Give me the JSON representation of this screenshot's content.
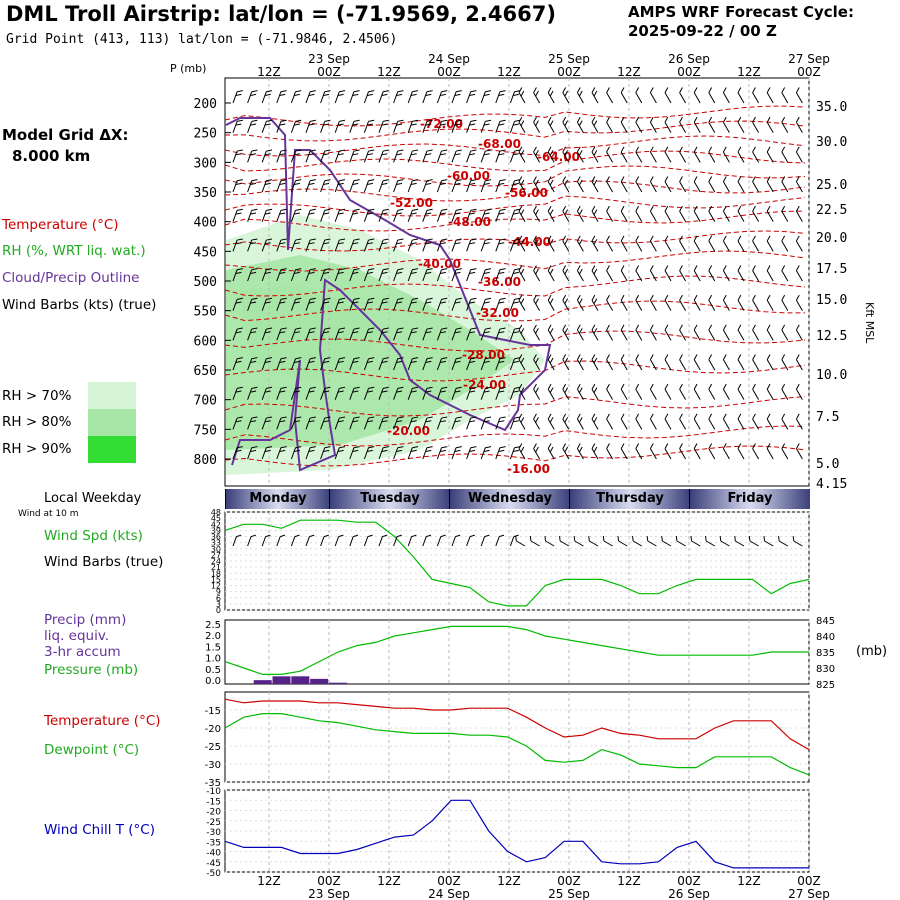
{
  "header": {
    "title": "DML Troll Airstrip:  lat/lon = (-71.9569, 2.4667)",
    "grid_point": "Grid Point (413, 113) lat/lon = (-71.9846, 2.4506)",
    "cycle_line1": "AMPS WRF Forecast Cycle:",
    "cycle_line2": "2025-09-22 / 00  Z",
    "model_grid_label": "Model Grid ΔX:",
    "model_grid_value": "8.000 km"
  },
  "legend": {
    "temperature": "Temperature (°C)",
    "rh": "RH (%, WRT liq. wat.)",
    "cloud": "Cloud/Precip Outline",
    "wind": "Wind Barbs (kts) (true)",
    "rh70": "RH > 70%",
    "rh80": "RH > 80%",
    "rh90": "RH > 90%",
    "rh_colors": [
      "#d6f5d6",
      "#a6e6a6",
      "#33dd33"
    ]
  },
  "colors": {
    "temperature": "#cc0000",
    "dewpoint": "#00bb00",
    "cloud": "#663399",
    "wind_chill": "#0000bb",
    "precip": "#552288"
  },
  "chart_data": [
    {
      "type": "heatmap",
      "name": "cross-section",
      "x_ticks_top": [
        "12Z",
        "00Z",
        "12Z",
        "00Z",
        "12Z",
        "00Z",
        "12Z",
        "00Z",
        "12Z",
        "00Z"
      ],
      "date_labels_top": [
        "23 Sep",
        "24 Sep",
        "25 Sep",
        "26 Sep",
        "27 Sep"
      ],
      "ylabel": "P (mb)",
      "y_ticks": [
        200,
        250,
        300,
        350,
        400,
        450,
        500,
        550,
        600,
        650,
        700,
        750,
        800
      ],
      "right_label": "Kft MSL",
      "right_ticks": [
        "35.0",
        "30.0",
        "25.0",
        "22.5",
        "20.0",
        "17.5",
        "15.0",
        "12.5",
        "10.0",
        "7.5",
        "5.0",
        "4.15"
      ],
      "temperature_contour_labels": [
        "-72.00",
        "-68.00",
        "-64.00",
        "-60.00",
        "-56.00",
        "-52.00",
        "-48.00",
        "-44.00",
        "-40.00",
        "-36.00",
        "-32.00",
        "-28.00",
        "-24.00",
        "-20.00",
        "-16.00"
      ]
    },
    {
      "type": "line",
      "name": "wind-speed",
      "section_title": "Local Weekday",
      "section_subtitle": "Wind at 10 m",
      "days": [
        "Monday",
        "Tuesday",
        "Wednesday",
        "Thursday",
        "Friday"
      ],
      "label1": "Wind Spd (kts)",
      "label2": "Wind Barbs (true)",
      "y_ticks": [
        0,
        3,
        6,
        9,
        12,
        15,
        18,
        21,
        24,
        27,
        30,
        33,
        36,
        39,
        42,
        45,
        48
      ],
      "ylim": [
        0,
        48
      ],
      "values": [
        39,
        42,
        42,
        40,
        44,
        44,
        44,
        43,
        43,
        36,
        26,
        15,
        13,
        11,
        4,
        2,
        2,
        12,
        15,
        15,
        15,
        12,
        8,
        8,
        12,
        15,
        15,
        15,
        15,
        8,
        13,
        15
      ]
    },
    {
      "type": "line",
      "name": "precip-pressure",
      "label1": "Precip (mm)",
      "label2": "liq. equiv.",
      "label3": "3-hr accum",
      "label4": "Pressure (mb)",
      "left_ticks": [
        "2.5",
        "2.0",
        "1.5",
        "1.0",
        "0.5",
        "0.0"
      ],
      "right_ticks": [
        "845",
        "840",
        "835",
        "830",
        "825"
      ],
      "right_unit": "(mb)",
      "ylim_left": [
        0,
        2.5
      ],
      "ylim_right": [
        825,
        845
      ],
      "pressure": [
        832,
        830,
        828,
        828,
        829,
        832,
        835,
        837,
        838,
        840,
        841,
        842,
        843,
        843,
        843,
        843,
        842,
        840,
        839,
        838,
        837,
        836,
        835,
        834,
        834,
        834,
        834,
        834,
        834,
        835,
        835,
        835
      ],
      "precip": [
        0,
        0,
        0.15,
        0.3,
        0.3,
        0.2,
        0.05,
        0,
        0,
        0,
        0,
        0,
        0,
        0,
        0,
        0,
        0,
        0,
        0,
        0,
        0,
        0,
        0,
        0,
        0,
        0,
        0,
        0,
        0,
        0,
        0,
        0
      ]
    },
    {
      "type": "line",
      "name": "temperature-dewpoint",
      "label1": "Temperature (°C)",
      "label2": "Dewpoint (°C)",
      "y_ticks": [
        -15,
        -20,
        -25,
        -30,
        -35
      ],
      "ylim": [
        -35,
        -10
      ],
      "temperature": [
        -12,
        -13,
        -12.5,
        -12.5,
        -12.5,
        -13,
        -13,
        -13.5,
        -14,
        -14.5,
        -14.5,
        -15,
        -15,
        -14.5,
        -14.5,
        -14.5,
        -17,
        -20,
        -22.5,
        -22,
        -20,
        -21.5,
        -22,
        -23,
        -23,
        -23,
        -20,
        -18,
        -18,
        -18,
        -23,
        -26
      ],
      "dewpoint": [
        -20,
        -17,
        -16,
        -16,
        -17,
        -18,
        -18.5,
        -19.5,
        -20.5,
        -21,
        -21.5,
        -21.5,
        -21.5,
        -22,
        -22,
        -22.5,
        -25,
        -29,
        -29.5,
        -29,
        -26,
        -27.5,
        -30,
        -30.5,
        -31,
        -31,
        -28,
        -28,
        -28,
        -28,
        -31,
        -33
      ]
    },
    {
      "type": "line",
      "name": "wind-chill",
      "label1": "Wind Chill T (°C)",
      "y_ticks": [
        -10,
        -15,
        -20,
        -25,
        -30,
        -35,
        -40,
        -45,
        -50
      ],
      "ylim": [
        -50,
        -10
      ],
      "values": [
        -35,
        -38,
        -38,
        -38,
        -41,
        -41,
        -41,
        -39,
        -36,
        -33,
        -32,
        -25,
        -15,
        -15,
        -30,
        -40,
        -45,
        -43,
        -35,
        -35,
        -45,
        -46,
        -46,
        -45,
        -38,
        -35,
        -45,
        -48,
        -48,
        -48,
        -48,
        -48
      ],
      "x_ticks_bottom": [
        "12Z",
        "00Z",
        "12Z",
        "00Z",
        "12Z",
        "00Z",
        "12Z",
        "00Z",
        "12Z",
        "00Z"
      ],
      "date_labels_bottom": [
        "23 Sep",
        "24 Sep",
        "25 Sep",
        "26 Sep",
        "27 Sep"
      ]
    }
  ]
}
